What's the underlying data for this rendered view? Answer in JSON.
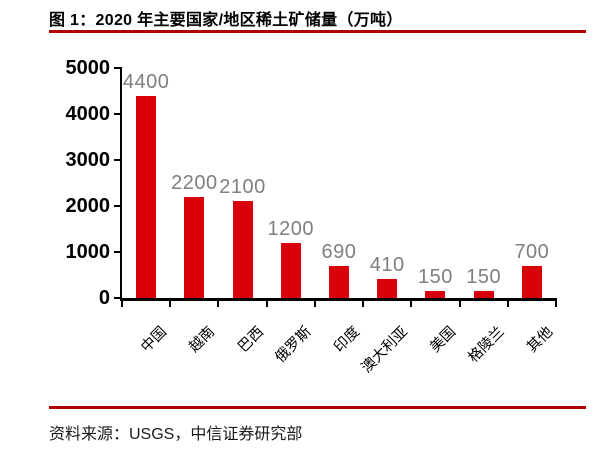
{
  "figure": {
    "title": "图 1：2020 年主要国家/地区稀土矿储量（万吨）",
    "source": "资料来源：USGS，中信证券研究部"
  },
  "chart_data": {
    "type": "bar",
    "categories": [
      "中国",
      "越南",
      "巴西",
      "俄罗斯",
      "印度",
      "澳大利亚",
      "美国",
      "格陵兰",
      "其他"
    ],
    "values": [
      4400,
      2200,
      2100,
      1200,
      690,
      410,
      150,
      150,
      700
    ],
    "data_labels": [
      "4400",
      "2200",
      "2100",
      "1200",
      "690",
      "410",
      "150",
      "150",
      "700"
    ],
    "title": "2020 年主要国家/地区稀土矿储量（万吨）",
    "xlabel": "",
    "ylabel": "",
    "ylim": [
      0,
      5000
    ],
    "yticks": [
      0,
      1000,
      2000,
      3000,
      4000,
      5000
    ],
    "grid": false,
    "legend": null,
    "data_labels_shown": true,
    "x_label_rotation_deg": 45
  },
  "colors": {
    "bar": "#d90009",
    "value_label": "#7f7f7f",
    "axis": "#000000",
    "accent_rule": "#b00000"
  }
}
